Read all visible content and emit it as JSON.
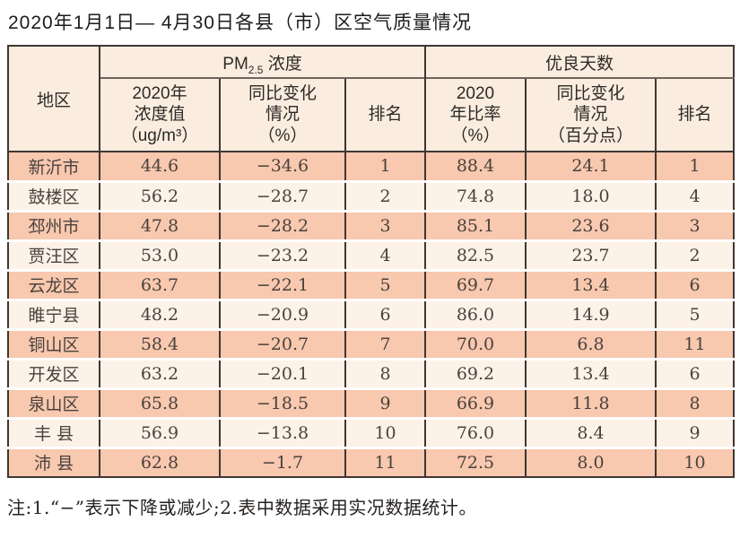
{
  "title": "2020年1月1日— 4月30日各县（市）区空气质量情况",
  "table": {
    "region_header": "地区",
    "group_pm": {
      "prefix": "PM",
      "sub": "2.5",
      "suffix": " 浓度"
    },
    "group_good": "优良天数",
    "sub_headers": {
      "pm_value": "2020年\n浓度值\n（ug/m³）",
      "pm_change": "同比变化\n情况\n（%）",
      "pm_rank": "排名",
      "good_rate": "2020\n年比率\n（%）",
      "good_change": "同比变化\n情况\n（百分点）",
      "good_rank": "排名"
    },
    "columns": [
      "region",
      "pm_value",
      "pm_change",
      "pm_rank",
      "good_rate",
      "good_change",
      "good_rank"
    ],
    "rows": [
      {
        "region": "新沂市",
        "pm_value": "44.6",
        "pm_change": "−34.6",
        "pm_rank": "1",
        "good_rate": "88.4",
        "good_change": "24.1",
        "good_rank": "1"
      },
      {
        "region": "鼓楼区",
        "pm_value": "56.2",
        "pm_change": "−28.7",
        "pm_rank": "2",
        "good_rate": "74.8",
        "good_change": "18.0",
        "good_rank": "4"
      },
      {
        "region": "邳州市",
        "pm_value": "47.8",
        "pm_change": "−28.2",
        "pm_rank": "3",
        "good_rate": "85.1",
        "good_change": "23.6",
        "good_rank": "3"
      },
      {
        "region": "贾汪区",
        "pm_value": "53.0",
        "pm_change": "−23.2",
        "pm_rank": "4",
        "good_rate": "82.5",
        "good_change": "23.7",
        "good_rank": "2"
      },
      {
        "region": "云龙区",
        "pm_value": "63.7",
        "pm_change": "−22.1",
        "pm_rank": "5",
        "good_rate": "69.7",
        "good_change": "13.4",
        "good_rank": "6"
      },
      {
        "region": "睢宁县",
        "pm_value": "48.2",
        "pm_change": "−20.9",
        "pm_rank": "6",
        "good_rate": "86.0",
        "good_change": "14.9",
        "good_rank": "5"
      },
      {
        "region": "铜山区",
        "pm_value": "58.4",
        "pm_change": "−20.7",
        "pm_rank": "7",
        "good_rate": "70.0",
        "good_change": "6.8",
        "good_rank": "11"
      },
      {
        "region": "开发区",
        "pm_value": "63.2",
        "pm_change": "−20.1",
        "pm_rank": "8",
        "good_rate": "69.2",
        "good_change": "13.4",
        "good_rank": "6"
      },
      {
        "region": "泉山区",
        "pm_value": "65.8",
        "pm_change": "−18.5",
        "pm_rank": "9",
        "good_rate": "66.9",
        "good_change": "11.8",
        "good_rank": "8"
      },
      {
        "region": "丰 县",
        "pm_value": "56.9",
        "pm_change": "−13.8",
        "pm_rank": "10",
        "good_rate": "76.0",
        "good_change": "8.4",
        "good_rank": "9"
      },
      {
        "region": "沛 县",
        "pm_value": "62.8",
        "pm_change": "−1.7",
        "pm_rank": "11",
        "good_rate": "72.5",
        "good_change": "8.0",
        "good_rank": "10"
      }
    ]
  },
  "note": "注:1.“−”表示下降或减少;2.表中数据采用实况数据统计。",
  "colors": {
    "row_salmon": "#f8c8af",
    "row_cream": "#fdf2e8",
    "header_bg": "#faeddf",
    "border_dark": "#3f3733"
  },
  "chart_data": {
    "type": "table",
    "title": "2020年1月1日— 4月30日各县（市）区空气质量情况",
    "column_groups": [
      "地区",
      "PM2.5浓度",
      "优良天数"
    ],
    "columns": [
      "地区",
      "2020年浓度值（ug/m³）",
      "同比变化情况（%）",
      "排名",
      "2020年比率（%）",
      "同比变化情况（百分点）",
      "排名"
    ],
    "rows": [
      [
        "新沂市",
        44.6,
        -34.6,
        1,
        88.4,
        24.1,
        1
      ],
      [
        "鼓楼区",
        56.2,
        -28.7,
        2,
        74.8,
        18.0,
        4
      ],
      [
        "邳州市",
        47.8,
        -28.2,
        3,
        85.1,
        23.6,
        3
      ],
      [
        "贾汪区",
        53.0,
        -23.2,
        4,
        82.5,
        23.7,
        2
      ],
      [
        "云龙区",
        63.7,
        -22.1,
        5,
        69.7,
        13.4,
        6
      ],
      [
        "睢宁县",
        48.2,
        -20.9,
        6,
        86.0,
        14.9,
        5
      ],
      [
        "铜山区",
        58.4,
        -20.7,
        7,
        70.0,
        6.8,
        11
      ],
      [
        "开发区",
        63.2,
        -20.1,
        8,
        69.2,
        13.4,
        6
      ],
      [
        "泉山区",
        65.8,
        -18.5,
        9,
        66.9,
        11.8,
        8
      ],
      [
        "丰县",
        56.9,
        -13.8,
        10,
        76.0,
        8.4,
        9
      ],
      [
        "沛县",
        62.8,
        -1.7,
        11,
        72.5,
        8.0,
        10
      ]
    ],
    "footnote": "注:1.“−”表示下降或减少;2.表中数据采用实况数据统计。"
  }
}
